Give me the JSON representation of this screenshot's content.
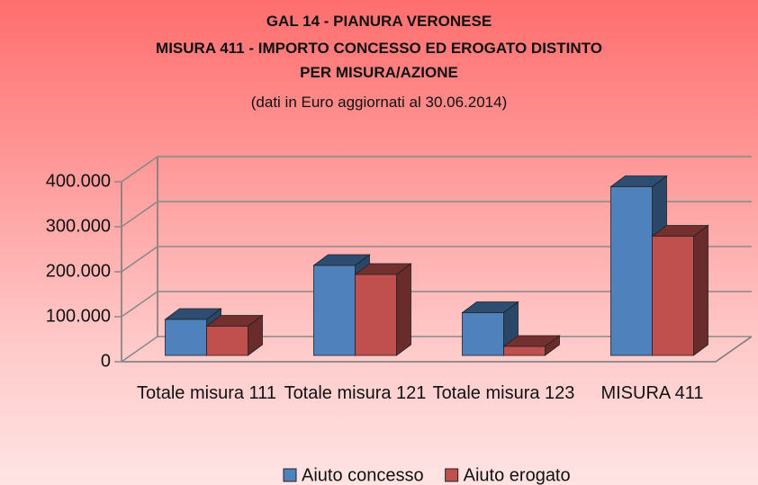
{
  "chart_data": {
    "type": "bar3d",
    "title": "GAL 14 - PIANURA VERONESE",
    "subtitle": "MISURA 411 - IMPORTO CONCESSO ED EROGATO DISTINTO PER MISURA/AZIONE",
    "note": "(dati in Euro aggiornati al 30.06.2014)",
    "categories": [
      "Totale misura 111",
      "Totale misura 121",
      "Totale misura 123",
      "MISURA 411"
    ],
    "series": [
      {
        "name": "Aiuto concesso",
        "color": "#4f81bd",
        "values": [
          80000,
          200000,
          95000,
          375000
        ]
      },
      {
        "name": "Aiuto erogato",
        "color": "#c0504d",
        "values": [
          65000,
          180000,
          20000,
          265000
        ]
      }
    ],
    "ylim": [
      0,
      400000
    ],
    "yticks": [
      0,
      {
        "value": 100000,
        "label": "100.000"
      },
      {
        "value": 200000,
        "label": "200.000"
      },
      {
        "value": 300000,
        "label": "300.000"
      },
      {
        "value": 400000,
        "label": "400.000"
      }
    ],
    "grid": true,
    "legend": "bottom"
  }
}
